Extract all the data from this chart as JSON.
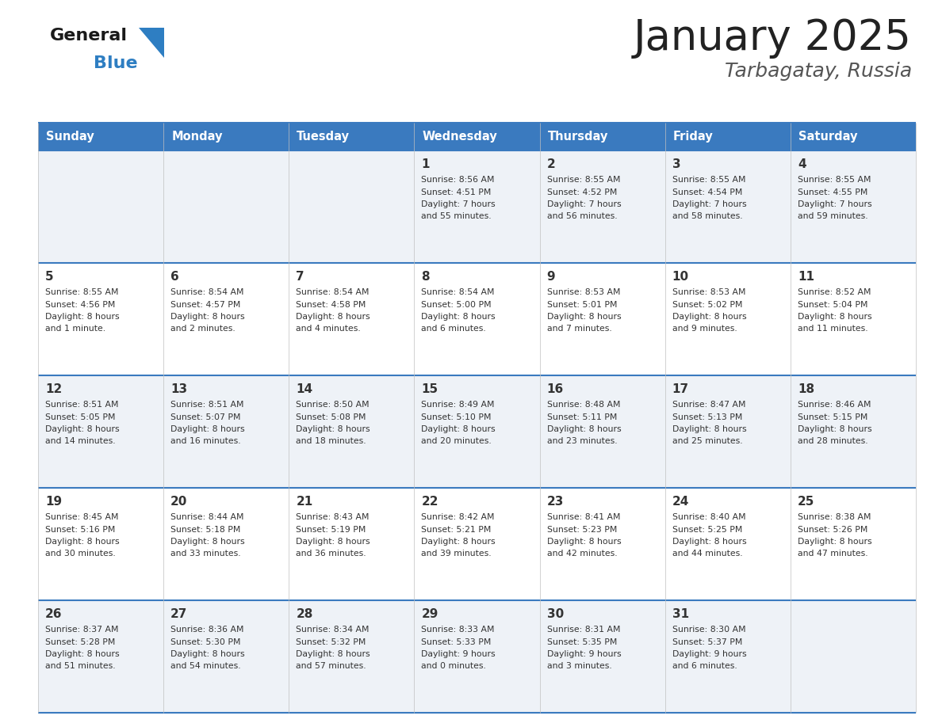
{
  "title": "January 2025",
  "subtitle": "Tarbagatay, Russia",
  "days_of_week": [
    "Sunday",
    "Monday",
    "Tuesday",
    "Wednesday",
    "Thursday",
    "Friday",
    "Saturday"
  ],
  "header_bg": "#3a7abf",
  "header_text": "#ffffff",
  "cell_bg_odd": "#eef2f7",
  "cell_bg_even": "#ffffff",
  "cell_text": "#333333",
  "border_color": "#3a7abf",
  "title_color": "#222222",
  "subtitle_color": "#555555",
  "logo_general_color": "#1a1a1a",
  "logo_blue_color": "#2e7ec2",
  "calendar_data": [
    {
      "day": 1,
      "col": 3,
      "row": 0,
      "sunrise": "8:56 AM",
      "sunset": "4:51 PM",
      "daylight": "7 hours",
      "minutes": "55 minutes."
    },
    {
      "day": 2,
      "col": 4,
      "row": 0,
      "sunrise": "8:55 AM",
      "sunset": "4:52 PM",
      "daylight": "7 hours",
      "minutes": "56 minutes."
    },
    {
      "day": 3,
      "col": 5,
      "row": 0,
      "sunrise": "8:55 AM",
      "sunset": "4:54 PM",
      "daylight": "7 hours",
      "minutes": "58 minutes."
    },
    {
      "day": 4,
      "col": 6,
      "row": 0,
      "sunrise": "8:55 AM",
      "sunset": "4:55 PM",
      "daylight": "7 hours",
      "minutes": "59 minutes."
    },
    {
      "day": 5,
      "col": 0,
      "row": 1,
      "sunrise": "8:55 AM",
      "sunset": "4:56 PM",
      "daylight": "8 hours",
      "minutes": "1 minute."
    },
    {
      "day": 6,
      "col": 1,
      "row": 1,
      "sunrise": "8:54 AM",
      "sunset": "4:57 PM",
      "daylight": "8 hours",
      "minutes": "2 minutes."
    },
    {
      "day": 7,
      "col": 2,
      "row": 1,
      "sunrise": "8:54 AM",
      "sunset": "4:58 PM",
      "daylight": "8 hours",
      "minutes": "4 minutes."
    },
    {
      "day": 8,
      "col": 3,
      "row": 1,
      "sunrise": "8:54 AM",
      "sunset": "5:00 PM",
      "daylight": "8 hours",
      "minutes": "6 minutes."
    },
    {
      "day": 9,
      "col": 4,
      "row": 1,
      "sunrise": "8:53 AM",
      "sunset": "5:01 PM",
      "daylight": "8 hours",
      "minutes": "7 minutes."
    },
    {
      "day": 10,
      "col": 5,
      "row": 1,
      "sunrise": "8:53 AM",
      "sunset": "5:02 PM",
      "daylight": "8 hours",
      "minutes": "9 minutes."
    },
    {
      "day": 11,
      "col": 6,
      "row": 1,
      "sunrise": "8:52 AM",
      "sunset": "5:04 PM",
      "daylight": "8 hours",
      "minutes": "11 minutes."
    },
    {
      "day": 12,
      "col": 0,
      "row": 2,
      "sunrise": "8:51 AM",
      "sunset": "5:05 PM",
      "daylight": "8 hours",
      "minutes": "14 minutes."
    },
    {
      "day": 13,
      "col": 1,
      "row": 2,
      "sunrise": "8:51 AM",
      "sunset": "5:07 PM",
      "daylight": "8 hours",
      "minutes": "16 minutes."
    },
    {
      "day": 14,
      "col": 2,
      "row": 2,
      "sunrise": "8:50 AM",
      "sunset": "5:08 PM",
      "daylight": "8 hours",
      "minutes": "18 minutes."
    },
    {
      "day": 15,
      "col": 3,
      "row": 2,
      "sunrise": "8:49 AM",
      "sunset": "5:10 PM",
      "daylight": "8 hours",
      "minutes": "20 minutes."
    },
    {
      "day": 16,
      "col": 4,
      "row": 2,
      "sunrise": "8:48 AM",
      "sunset": "5:11 PM",
      "daylight": "8 hours",
      "minutes": "23 minutes."
    },
    {
      "day": 17,
      "col": 5,
      "row": 2,
      "sunrise": "8:47 AM",
      "sunset": "5:13 PM",
      "daylight": "8 hours",
      "minutes": "25 minutes."
    },
    {
      "day": 18,
      "col": 6,
      "row": 2,
      "sunrise": "8:46 AM",
      "sunset": "5:15 PM",
      "daylight": "8 hours",
      "minutes": "28 minutes."
    },
    {
      "day": 19,
      "col": 0,
      "row": 3,
      "sunrise": "8:45 AM",
      "sunset": "5:16 PM",
      "daylight": "8 hours",
      "minutes": "30 minutes."
    },
    {
      "day": 20,
      "col": 1,
      "row": 3,
      "sunrise": "8:44 AM",
      "sunset": "5:18 PM",
      "daylight": "8 hours",
      "minutes": "33 minutes."
    },
    {
      "day": 21,
      "col": 2,
      "row": 3,
      "sunrise": "8:43 AM",
      "sunset": "5:19 PM",
      "daylight": "8 hours",
      "minutes": "36 minutes."
    },
    {
      "day": 22,
      "col": 3,
      "row": 3,
      "sunrise": "8:42 AM",
      "sunset": "5:21 PM",
      "daylight": "8 hours",
      "minutes": "39 minutes."
    },
    {
      "day": 23,
      "col": 4,
      "row": 3,
      "sunrise": "8:41 AM",
      "sunset": "5:23 PM",
      "daylight": "8 hours",
      "minutes": "42 minutes."
    },
    {
      "day": 24,
      "col": 5,
      "row": 3,
      "sunrise": "8:40 AM",
      "sunset": "5:25 PM",
      "daylight": "8 hours",
      "minutes": "44 minutes."
    },
    {
      "day": 25,
      "col": 6,
      "row": 3,
      "sunrise": "8:38 AM",
      "sunset": "5:26 PM",
      "daylight": "8 hours",
      "minutes": "47 minutes."
    },
    {
      "day": 26,
      "col": 0,
      "row": 4,
      "sunrise": "8:37 AM",
      "sunset": "5:28 PM",
      "daylight": "8 hours",
      "minutes": "51 minutes."
    },
    {
      "day": 27,
      "col": 1,
      "row": 4,
      "sunrise": "8:36 AM",
      "sunset": "5:30 PM",
      "daylight": "8 hours",
      "minutes": "54 minutes."
    },
    {
      "day": 28,
      "col": 2,
      "row": 4,
      "sunrise": "8:34 AM",
      "sunset": "5:32 PM",
      "daylight": "8 hours",
      "minutes": "57 minutes."
    },
    {
      "day": 29,
      "col": 3,
      "row": 4,
      "sunrise": "8:33 AM",
      "sunset": "5:33 PM",
      "daylight": "9 hours",
      "minutes": "0 minutes."
    },
    {
      "day": 30,
      "col": 4,
      "row": 4,
      "sunrise": "8:31 AM",
      "sunset": "5:35 PM",
      "daylight": "9 hours",
      "minutes": "3 minutes."
    },
    {
      "day": 31,
      "col": 5,
      "row": 4,
      "sunrise": "8:30 AM",
      "sunset": "5:37 PM",
      "daylight": "9 hours",
      "minutes": "6 minutes."
    }
  ]
}
